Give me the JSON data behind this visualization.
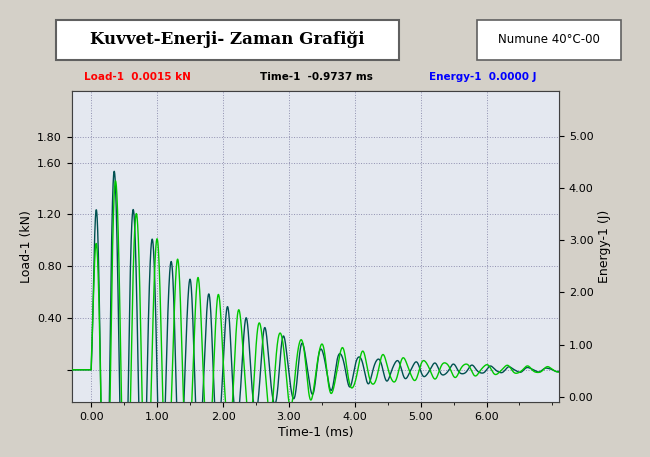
{
  "title_display": "Kuvvet-Enerji- Zaman Grafiği",
  "sample_label": "Numune 40°C-00",
  "header_load": "Load-1  0.0015 kN",
  "header_time": "Time-1  -0.9737 ms",
  "header_energy": "Energy-1  0.0000 J",
  "xlabel": "Time-1 (ms)",
  "ylabel_left": "Load-1 (kN)",
  "ylabel_right": "Energy-1 (J)",
  "xlim": [
    -0.3,
    7.1
  ],
  "ylim_left": [
    -0.25,
    2.15
  ],
  "ylim_right": [
    -0.1,
    5.85
  ],
  "bg_color": "#d4d0c8",
  "plot_bg_color": "#e4e8f0",
  "grid_color": "#9090b0",
  "curve_dark_teal": "#005050",
  "curve_light_green": "#00c800",
  "curve_cyan": "#00b8d4",
  "curve_dark_green": "#007800"
}
